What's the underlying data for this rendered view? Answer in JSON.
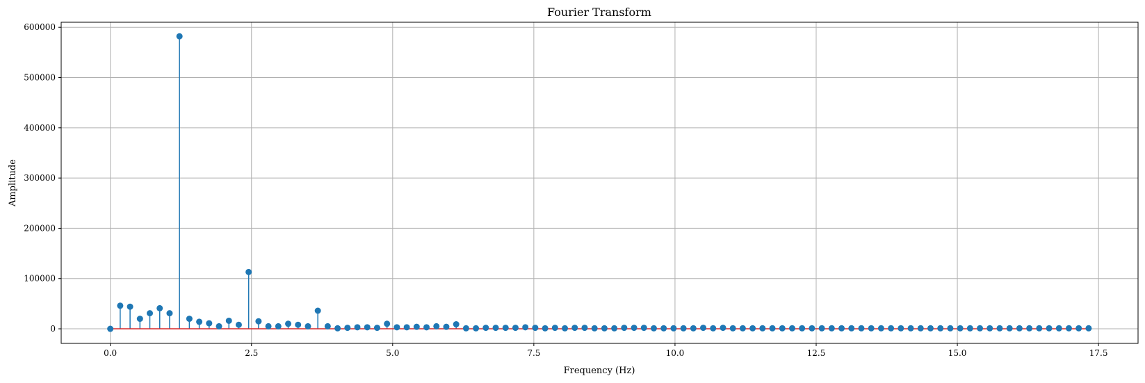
{
  "chart_data": {
    "type": "stem",
    "title": "Fourier Transform",
    "xlabel": "Frequency (Hz)",
    "ylabel": "Amplitude",
    "xlim": [
      -0.87,
      18.2
    ],
    "ylim": [
      -29000,
      610000
    ],
    "xticks": [
      0.0,
      2.5,
      5.0,
      7.5,
      10.0,
      12.5,
      15.0,
      17.5
    ],
    "xtick_labels": [
      "0.0",
      "2.5",
      "5.0",
      "7.5",
      "10.0",
      "12.5",
      "15.0",
      "17.5"
    ],
    "yticks": [
      0,
      100000,
      200000,
      300000,
      400000,
      500000,
      600000
    ],
    "ytick_labels": [
      "0",
      "100000",
      "200000",
      "300000",
      "400000",
      "500000",
      "600000"
    ],
    "grid": true,
    "x_start": 0.0,
    "x_step": 0.175,
    "values": [
      0,
      46000,
      44000,
      20000,
      31000,
      41000,
      31000,
      582000,
      20000,
      14000,
      11000,
      5000,
      16000,
      8000,
      113000,
      15000,
      5000,
      5000,
      10000,
      8000,
      5000,
      36000,
      5000,
      1000,
      2000,
      3000,
      3000,
      2000,
      10000,
      3000,
      3000,
      4000,
      3000,
      5000,
      4000,
      9000,
      1000,
      1000,
      2000,
      2000,
      2000,
      2000,
      3000,
      2000,
      1000,
      2000,
      1000,
      2000,
      2000,
      1000,
      1000,
      1000,
      2000,
      2000,
      2000,
      1000,
      1000,
      1000,
      1000,
      1000,
      2000,
      1000,
      2000,
      1000,
      1000,
      1000,
      1000,
      1000,
      1000,
      1000,
      1000,
      1000,
      1000,
      1000,
      1000,
      1000,
      1000,
      1000,
      1000,
      1000,
      1000,
      1000,
      1000,
      1000,
      1000,
      1000,
      1000,
      1000,
      1000,
      1000,
      1000,
      1000,
      1000,
      1000,
      1000,
      1000,
      1000,
      1000,
      1000,
      1000
    ],
    "colors": {
      "stem": "#1f77b4",
      "baseline": "#d62728",
      "grid": "#b0b0b0"
    }
  }
}
